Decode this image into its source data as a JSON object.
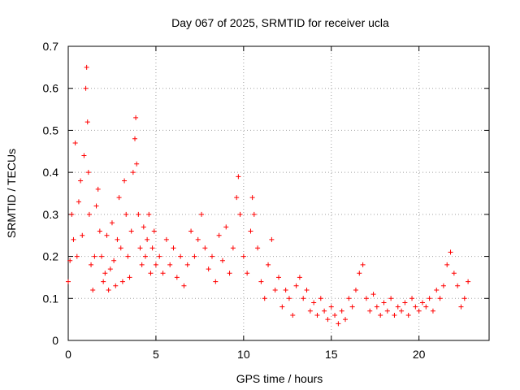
{
  "chart_data": {
    "type": "scatter",
    "title": "Day 067 of 2025, SRMTID for receiver ucla",
    "xlabel": "GPS time / hours",
    "ylabel": "SRMTID / TECUs",
    "xlim": [
      0,
      24
    ],
    "ylim": [
      0,
      0.7
    ],
    "x_ticks": [
      0,
      5,
      10,
      15,
      20
    ],
    "x_tick_labels": [
      "0",
      "5",
      "10",
      "15",
      "20"
    ],
    "y_ticks": [
      0,
      0.1,
      0.2,
      0.3,
      0.4,
      0.5,
      0.6,
      0.7
    ],
    "y_tick_labels": [
      "0",
      "0.1",
      "0.2",
      "0.3",
      "0.4",
      "0.5",
      "0.6",
      "0.7"
    ],
    "grid": true,
    "marker": "+",
    "series": [
      {
        "name": "SRMTID",
        "color": "#ff0000",
        "x": [
          0.0,
          0.1,
          0.2,
          0.3,
          0.4,
          0.5,
          0.6,
          0.7,
          0.8,
          0.9,
          1.0,
          1.05,
          1.1,
          1.15,
          1.2,
          1.3,
          1.4,
          1.5,
          1.6,
          1.7,
          1.8,
          1.9,
          2.0,
          2.1,
          2.2,
          2.3,
          2.4,
          2.5,
          2.6,
          2.7,
          2.8,
          2.9,
          3.0,
          3.1,
          3.2,
          3.3,
          3.4,
          3.5,
          3.6,
          3.7,
          3.8,
          3.85,
          3.9,
          4.0,
          4.1,
          4.2,
          4.3,
          4.4,
          4.5,
          4.6,
          4.7,
          4.8,
          4.9,
          5.0,
          5.2,
          5.4,
          5.6,
          5.8,
          6.0,
          6.2,
          6.4,
          6.6,
          6.8,
          7.0,
          7.2,
          7.4,
          7.6,
          7.8,
          8.0,
          8.2,
          8.4,
          8.6,
          8.8,
          9.0,
          9.2,
          9.4,
          9.6,
          9.7,
          9.8,
          10.0,
          10.2,
          10.4,
          10.5,
          10.6,
          10.8,
          11.0,
          11.2,
          11.4,
          11.6,
          11.8,
          12.0,
          12.2,
          12.4,
          12.6,
          12.8,
          13.0,
          13.2,
          13.4,
          13.6,
          13.8,
          14.0,
          14.2,
          14.4,
          14.6,
          14.8,
          15.0,
          15.2,
          15.4,
          15.6,
          15.8,
          16.0,
          16.2,
          16.4,
          16.6,
          16.8,
          17.0,
          17.2,
          17.4,
          17.6,
          17.8,
          18.0,
          18.2,
          18.4,
          18.6,
          18.8,
          19.0,
          19.2,
          19.4,
          19.6,
          19.8,
          20.0,
          20.2,
          20.4,
          20.6,
          20.8,
          21.0,
          21.2,
          21.4,
          21.6,
          21.8,
          22.0,
          22.2,
          22.4,
          22.6,
          22.8
        ],
        "y": [
          0.14,
          0.19,
          0.3,
          0.24,
          0.47,
          0.2,
          0.33,
          0.38,
          0.25,
          0.44,
          0.6,
          0.65,
          0.52,
          0.4,
          0.3,
          0.18,
          0.12,
          0.2,
          0.32,
          0.36,
          0.26,
          0.2,
          0.14,
          0.16,
          0.25,
          0.12,
          0.17,
          0.28,
          0.19,
          0.13,
          0.24,
          0.34,
          0.22,
          0.14,
          0.38,
          0.3,
          0.2,
          0.15,
          0.26,
          0.4,
          0.48,
          0.53,
          0.42,
          0.3,
          0.22,
          0.18,
          0.27,
          0.2,
          0.24,
          0.3,
          0.16,
          0.22,
          0.26,
          0.18,
          0.2,
          0.16,
          0.24,
          0.18,
          0.22,
          0.15,
          0.2,
          0.13,
          0.18,
          0.26,
          0.2,
          0.24,
          0.3,
          0.22,
          0.17,
          0.2,
          0.14,
          0.25,
          0.19,
          0.27,
          0.16,
          0.22,
          0.34,
          0.39,
          0.3,
          0.2,
          0.16,
          0.26,
          0.34,
          0.3,
          0.22,
          0.14,
          0.1,
          0.18,
          0.24,
          0.12,
          0.15,
          0.08,
          0.12,
          0.1,
          0.06,
          0.13,
          0.15,
          0.1,
          0.12,
          0.07,
          0.09,
          0.06,
          0.1,
          0.07,
          0.05,
          0.08,
          0.06,
          0.04,
          0.07,
          0.05,
          0.1,
          0.08,
          0.12,
          0.16,
          0.18,
          0.1,
          0.07,
          0.11,
          0.08,
          0.06,
          0.09,
          0.07,
          0.1,
          0.06,
          0.08,
          0.07,
          0.09,
          0.06,
          0.1,
          0.08,
          0.07,
          0.09,
          0.08,
          0.1,
          0.07,
          0.12,
          0.1,
          0.13,
          0.18,
          0.21,
          0.16,
          0.13,
          0.08,
          0.1,
          0.14
        ]
      }
    ]
  }
}
